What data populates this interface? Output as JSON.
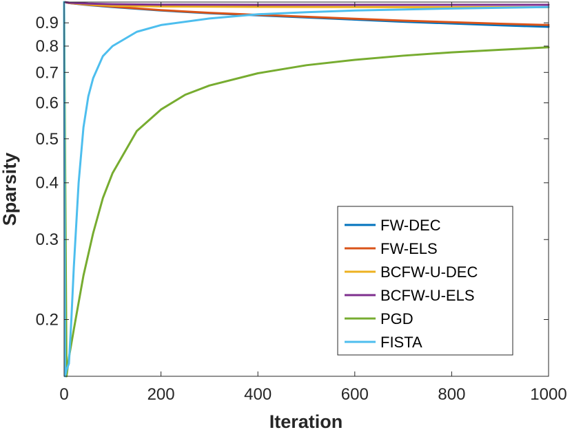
{
  "chart_data": {
    "type": "line",
    "title": "",
    "xlabel": "Iteration",
    "ylabel": "Sparsity",
    "xlim": [
      0,
      1000
    ],
    "ylim": [
      0.15,
      1.0
    ],
    "yscale": "log",
    "xticks": [
      0,
      200,
      400,
      600,
      800,
      1000
    ],
    "yticks": [
      0.2,
      0.3,
      0.4,
      0.5,
      0.6,
      0.7,
      0.8,
      0.9
    ],
    "grid": false,
    "legend_position": "bottom-right",
    "series": [
      {
        "name": "FW-DEC",
        "color": "#0072BD",
        "x": [
          0,
          10,
          50,
          100,
          200,
          300,
          400,
          500,
          600,
          700,
          800,
          900,
          1000
        ],
        "y": [
          1.0,
          0.995,
          0.985,
          0.975,
          0.958,
          0.945,
          0.935,
          0.925,
          0.915,
          0.905,
          0.897,
          0.889,
          0.882
        ]
      },
      {
        "name": "FW-ELS",
        "color": "#D95319",
        "x": [
          0,
          10,
          50,
          100,
          200,
          300,
          400,
          500,
          600,
          700,
          800,
          900,
          1000
        ],
        "y": [
          1.0,
          0.995,
          0.986,
          0.977,
          0.96,
          0.947,
          0.937,
          0.928,
          0.919,
          0.91,
          0.903,
          0.896,
          0.89
        ]
      },
      {
        "name": "BCFW-U-DEC",
        "color": "#EDB120",
        "x": [
          0,
          10,
          50,
          100,
          200,
          400,
          600,
          800,
          1000
        ],
        "y": [
          1.0,
          0.996,
          0.988,
          0.982,
          0.978,
          0.976,
          0.975,
          0.974,
          0.974
        ]
      },
      {
        "name": "BCFW-U-ELS",
        "color": "#7E2F8E",
        "x": [
          0,
          10,
          50,
          100,
          200,
          400,
          600,
          800,
          1000
        ],
        "y": [
          1.0,
          0.997,
          0.992,
          0.989,
          0.987,
          0.986,
          0.986,
          0.986,
          0.986
        ]
      },
      {
        "name": "PGD",
        "color": "#77AC30",
        "x": [
          0,
          5,
          10,
          20,
          40,
          60,
          80,
          100,
          150,
          200,
          250,
          300,
          400,
          500,
          600,
          700,
          800,
          900,
          1000
        ],
        "y": [
          1.0,
          0.15,
          0.165,
          0.19,
          0.25,
          0.31,
          0.37,
          0.42,
          0.52,
          0.58,
          0.625,
          0.655,
          0.697,
          0.726,
          0.746,
          0.762,
          0.775,
          0.785,
          0.795
        ]
      },
      {
        "name": "FISTA",
        "color": "#4DBEEE",
        "x": [
          0,
          2,
          5,
          10,
          15,
          20,
          30,
          40,
          50,
          60,
          80,
          100,
          150,
          200,
          300,
          400,
          500,
          600,
          800,
          1000
        ],
        "y": [
          1.0,
          0.15,
          0.155,
          0.16,
          0.2,
          0.26,
          0.4,
          0.53,
          0.62,
          0.68,
          0.76,
          0.8,
          0.86,
          0.89,
          0.92,
          0.94,
          0.95,
          0.958,
          0.968,
          0.975
        ]
      }
    ]
  }
}
